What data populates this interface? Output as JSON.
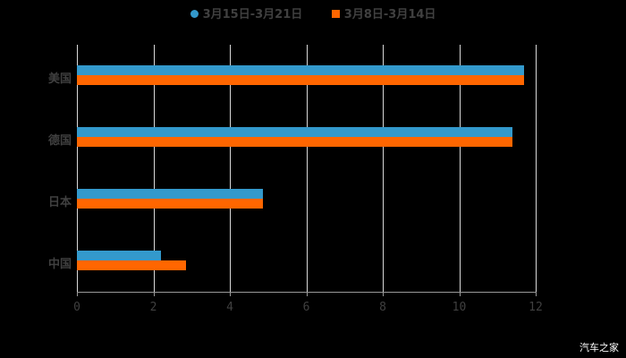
{
  "chart_data": {
    "type": "bar",
    "orientation": "horizontal",
    "categories": [
      "美国",
      "德国",
      "日本",
      "中国"
    ],
    "series": [
      {
        "name": "3月15日-3月21日",
        "color": "#3399cc",
        "values": [
          11.7,
          11.4,
          4.86,
          2.21
        ]
      },
      {
        "name": "3月8日-3月14日",
        "color": "#ff6600",
        "values": [
          11.7,
          11.4,
          4.86,
          2.85
        ]
      }
    ],
    "xticks": [
      "0",
      "2",
      "4",
      "6",
      "8",
      "10",
      "12"
    ],
    "xlim": [
      0,
      12
    ],
    "grid": true,
    "legend_position": "top"
  },
  "legend": {
    "s1": "3月15日-3月21日",
    "s2": "3月8日-3月14日"
  },
  "watermark": "汽车之家"
}
